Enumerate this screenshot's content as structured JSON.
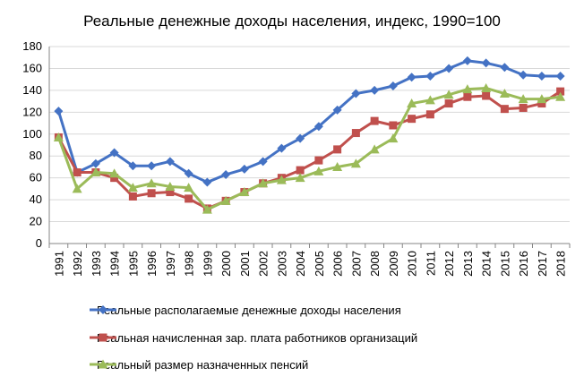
{
  "chart_data": {
    "type": "line",
    "title": "Реальные денежные доходы населения, индекс, 1990=100",
    "categories": [
      "1991",
      "1992",
      "1993",
      "1994",
      "1995",
      "1996",
      "1997",
      "1998",
      "1999",
      "2000",
      "2001",
      "2002",
      "2003",
      "2004",
      "2005",
      "2006",
      "2007",
      "2008",
      "2009",
      "2010",
      "2011",
      "2012",
      "2013",
      "2014",
      "2015",
      "2016",
      "2017",
      "2018"
    ],
    "ylim": [
      0,
      180
    ],
    "yticks": [
      "0",
      "20",
      "40",
      "60",
      "80",
      "100",
      "120",
      "140",
      "160",
      "180"
    ],
    "grid": true,
    "legend_position": "bottom",
    "series": [
      {
        "name": "Реальные располагаемые денежные доходы населения",
        "color": "#4472C4",
        "marker": "diamond",
        "values": [
          121,
          65,
          73,
          83,
          71,
          71,
          75,
          64,
          56,
          63,
          68,
          75,
          87,
          96,
          107,
          122,
          137,
          140,
          144,
          152,
          153,
          160,
          167,
          165,
          161,
          154,
          153,
          153
        ]
      },
      {
        "name": "Реальная начисленная зар. плата работников организаций",
        "color": "#C0504D",
        "marker": "square",
        "values": [
          97,
          65,
          65,
          60,
          43,
          46,
          47,
          41,
          32,
          39,
          47,
          55,
          60,
          67,
          76,
          86,
          101,
          112,
          108,
          114,
          118,
          128,
          134,
          135,
          123,
          124,
          128,
          139
        ]
      },
      {
        "name": "Реальный размер назначенных пенсий",
        "color": "#9BBB59",
        "marker": "triangle",
        "values": [
          97,
          50,
          65,
          64,
          51,
          55,
          52,
          51,
          31,
          39,
          47,
          55,
          58,
          60,
          66,
          70,
          73,
          86,
          96,
          128,
          131,
          136,
          141,
          142,
          137,
          132,
          132,
          134
        ]
      }
    ]
  }
}
